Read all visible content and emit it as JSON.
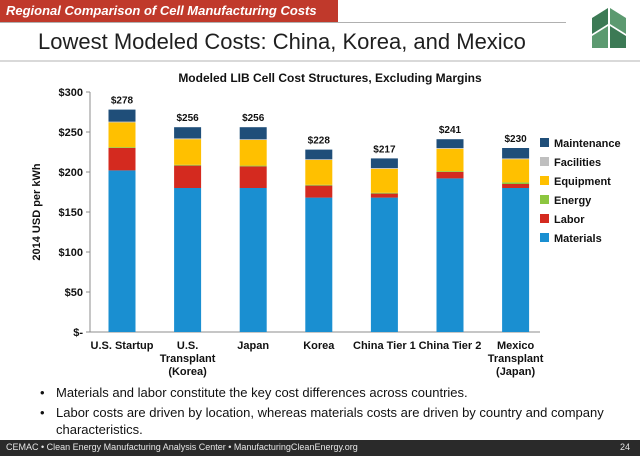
{
  "header": {
    "banner": "Regional Comparison of Cell Manufacturing Costs",
    "title": "Lowest Modeled Costs:  China, Korea, and Mexico"
  },
  "colors": {
    "banner": "#c0392b",
    "Materials": "#1a8fd1",
    "Labor": "#d42a1f",
    "Energy": "#8cc63f",
    "Equipment": "#ffc000",
    "Facilities": "#bfbfbf",
    "Maintenance": "#1f4e79",
    "logo_green": "#3c7a55"
  },
  "chart_data": {
    "type": "bar",
    "stacked": true,
    "title": "Modeled LIB Cell Cost Structures, Excluding Margins",
    "ylabel": "2014 USD per kWh",
    "ylim": [
      0,
      300
    ],
    "yticks": [
      0,
      50,
      100,
      150,
      200,
      250,
      300
    ],
    "ytick_labels": [
      "$-",
      "$50",
      "$100",
      "$150",
      "$200",
      "$250",
      "$300"
    ],
    "categories": [
      [
        "U.S. Startup"
      ],
      [
        "U.S.",
        "Transplant",
        "(Korea)"
      ],
      [
        "Japan"
      ],
      [
        "Korea"
      ],
      [
        "China Tier 1"
      ],
      [
        "China Tier 2"
      ],
      [
        "Mexico",
        "Transplant",
        "(Japan)"
      ]
    ],
    "totals": [
      "$278",
      "$256",
      "$256",
      "$228",
      "$217",
      "$241",
      "$230"
    ],
    "series": [
      {
        "name": "Materials",
        "values": [
          202,
          180,
          180,
          168,
          168,
          192,
          180
        ]
      },
      {
        "name": "Labor",
        "values": [
          28,
          28,
          27,
          15,
          5,
          8,
          5
        ]
      },
      {
        "name": "Energy",
        "values": [
          1,
          1,
          1,
          1,
          1,
          1,
          2
        ]
      },
      {
        "name": "Equipment",
        "values": [
          31,
          32,
          32,
          31,
          30,
          28,
          29
        ]
      },
      {
        "name": "Facilities",
        "values": [
          1,
          1,
          1,
          1,
          1,
          1,
          1
        ]
      },
      {
        "name": "Maintenance",
        "values": [
          15,
          14,
          15,
          12,
          12,
          11,
          13
        ]
      }
    ],
    "legend": [
      "Maintenance",
      "Facilities",
      "Equipment",
      "Energy",
      "Labor",
      "Materials"
    ],
    "legend_position": "right",
    "grid": false
  },
  "bullets": [
    "Materials and labor constitute the key cost differences across countries.",
    "Labor costs are driven by location, whereas materials costs are driven by country and company characteristics."
  ],
  "footer": {
    "left": "CEMAC • Clean Energy Manufacturing Analysis Center • ManufacturingCleanEnergy.org",
    "page": "24"
  }
}
